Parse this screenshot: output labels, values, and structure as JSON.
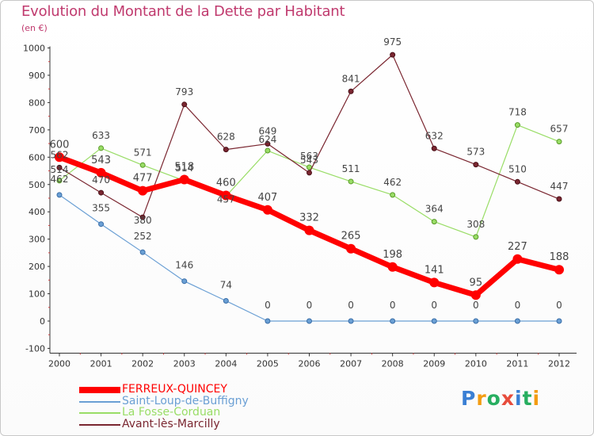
{
  "title": "Evolution du Montant de la Dette par Habitant",
  "subtitle": "(en €)",
  "logo": {
    "text": "Proxiti"
  },
  "chart_data": {
    "type": "line",
    "title": "Evolution du Montant de la Dette par Habitant",
    "subtitle": "(en €)",
    "xlabel": "",
    "ylabel": "",
    "x": [
      2000,
      2001,
      2002,
      2003,
      2004,
      2005,
      2006,
      2007,
      2008,
      2009,
      2010,
      2011,
      2012
    ],
    "ylim": [
      -100,
      1000
    ],
    "yticks": [
      -100,
      0,
      100,
      200,
      300,
      400,
      500,
      600,
      700,
      800,
      900,
      1000
    ],
    "grid": false,
    "legend": "bottom-left",
    "series": [
      {
        "name": "FERREUX-QUINCEY",
        "color": "#ff0000",
        "values": [
          600,
          543,
          477,
          518,
          460,
          407,
          332,
          265,
          198,
          141,
          95,
          227,
          188
        ]
      },
      {
        "name": "Saint-Loup-de-Buffigny",
        "color": "#6a9fd4",
        "values": [
          462,
          355,
          252,
          146,
          74,
          0,
          0,
          0,
          0,
          0,
          0,
          0,
          0
        ]
      },
      {
        "name": "La Fosse-Corduan",
        "color": "#99dd66",
        "values": [
          514,
          633,
          571,
          514,
          457,
          624,
          563,
          511,
          462,
          364,
          308,
          718,
          657
        ]
      },
      {
        "name": "Avant-lès-Marcilly",
        "color": "#7a2630",
        "values": [
          562,
          470,
          380,
          793,
          628,
          649,
          543,
          841,
          975,
          632,
          573,
          510,
          447
        ]
      }
    ]
  }
}
